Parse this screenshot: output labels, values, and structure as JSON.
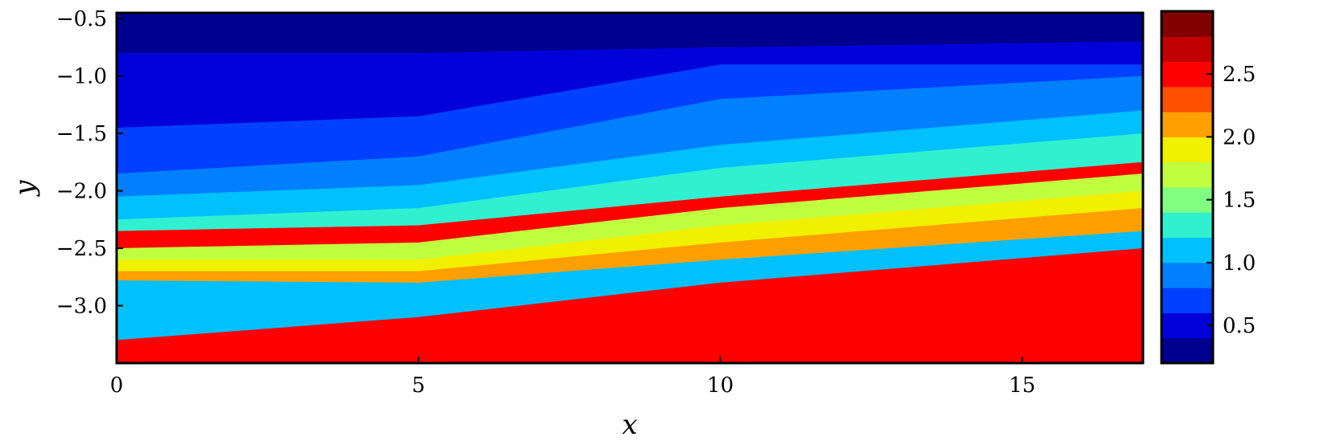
{
  "chart_data": {
    "type": "heatmap",
    "title": "",
    "xlabel": "x",
    "ylabel": "y",
    "xlim": [
      0,
      17
    ],
    "ylim": [
      -3.5,
      -0.45
    ],
    "x_ticks": [
      0,
      5,
      10,
      15
    ],
    "x_tick_labels": [
      "0",
      "5",
      "10",
      "15"
    ],
    "y_ticks": [
      -0.5,
      -1.0,
      -1.5,
      -2.0,
      -2.5,
      -3.0
    ],
    "y_tick_labels": [
      "−0.5",
      "−1.0",
      "−1.5",
      "−2.0",
      "−2.5",
      "−3.0"
    ],
    "colorbar": {
      "range": [
        0.2,
        3.0
      ],
      "levels": [
        0.2,
        0.4,
        0.6,
        0.8,
        1.0,
        1.2,
        1.4,
        1.6,
        1.8,
        2.0,
        2.2,
        2.4,
        2.6,
        2.8,
        3.0
      ],
      "ticks": [
        0.5,
        1.0,
        1.5,
        2.0,
        2.5
      ],
      "tick_labels": [
        "0.5",
        "1.0",
        "1.5",
        "2.0",
        "2.5"
      ],
      "colors": [
        "#00008f",
        "#0000d8",
        "#0040ff",
        "#0080ff",
        "#00c0ff",
        "#30f0d0",
        "#80ff80",
        "#c0ff40",
        "#f0f000",
        "#ffa000",
        "#ff5000",
        "#ff0000",
        "#c00000",
        "#800000"
      ]
    },
    "grid": false,
    "legend": "none",
    "bands": [
      {
        "value": 0.3,
        "y": [
          -0.5,
          -0.55,
          -0.6,
          -0.55
        ]
      },
      {
        "value": 0.5,
        "y": [
          -0.8,
          -0.8,
          -0.75,
          -0.7
        ]
      },
      {
        "value": 0.7,
        "y": [
          -1.45,
          -1.35,
          -0.9,
          -0.9
        ]
      },
      {
        "value": 0.9,
        "y": [
          -1.85,
          -1.7,
          -1.2,
          -1.0
        ]
      },
      {
        "value": 1.1,
        "y": [
          -2.05,
          -1.95,
          -1.6,
          -1.3
        ]
      },
      {
        "value": 1.3,
        "y": [
          -2.25,
          -2.15,
          -1.8,
          -1.5
        ]
      },
      {
        "value": 2.5,
        "y": [
          -2.35,
          -2.3,
          -2.05,
          -1.75
        ]
      },
      {
        "value": 1.7,
        "y": [
          -2.5,
          -2.45,
          -2.15,
          -1.85
        ]
      },
      {
        "value": 1.9,
        "y": [
          -2.6,
          -2.6,
          -2.3,
          -2.0
        ]
      },
      {
        "value": 2.1,
        "y": [
          -2.7,
          -2.7,
          -2.45,
          -2.15
        ]
      },
      {
        "value": 1.1,
        "y": [
          -2.78,
          -2.8,
          -2.6,
          -2.35
        ]
      },
      {
        "value": 2.5,
        "y": [
          -3.3,
          -3.1,
          -2.8,
          -2.5
        ]
      },
      {
        "value": 2.1,
        "y": [
          -3.5,
          -3.5,
          -3.5,
          -3.5
        ]
      }
    ],
    "band_x": [
      0,
      5,
      10,
      17
    ]
  }
}
